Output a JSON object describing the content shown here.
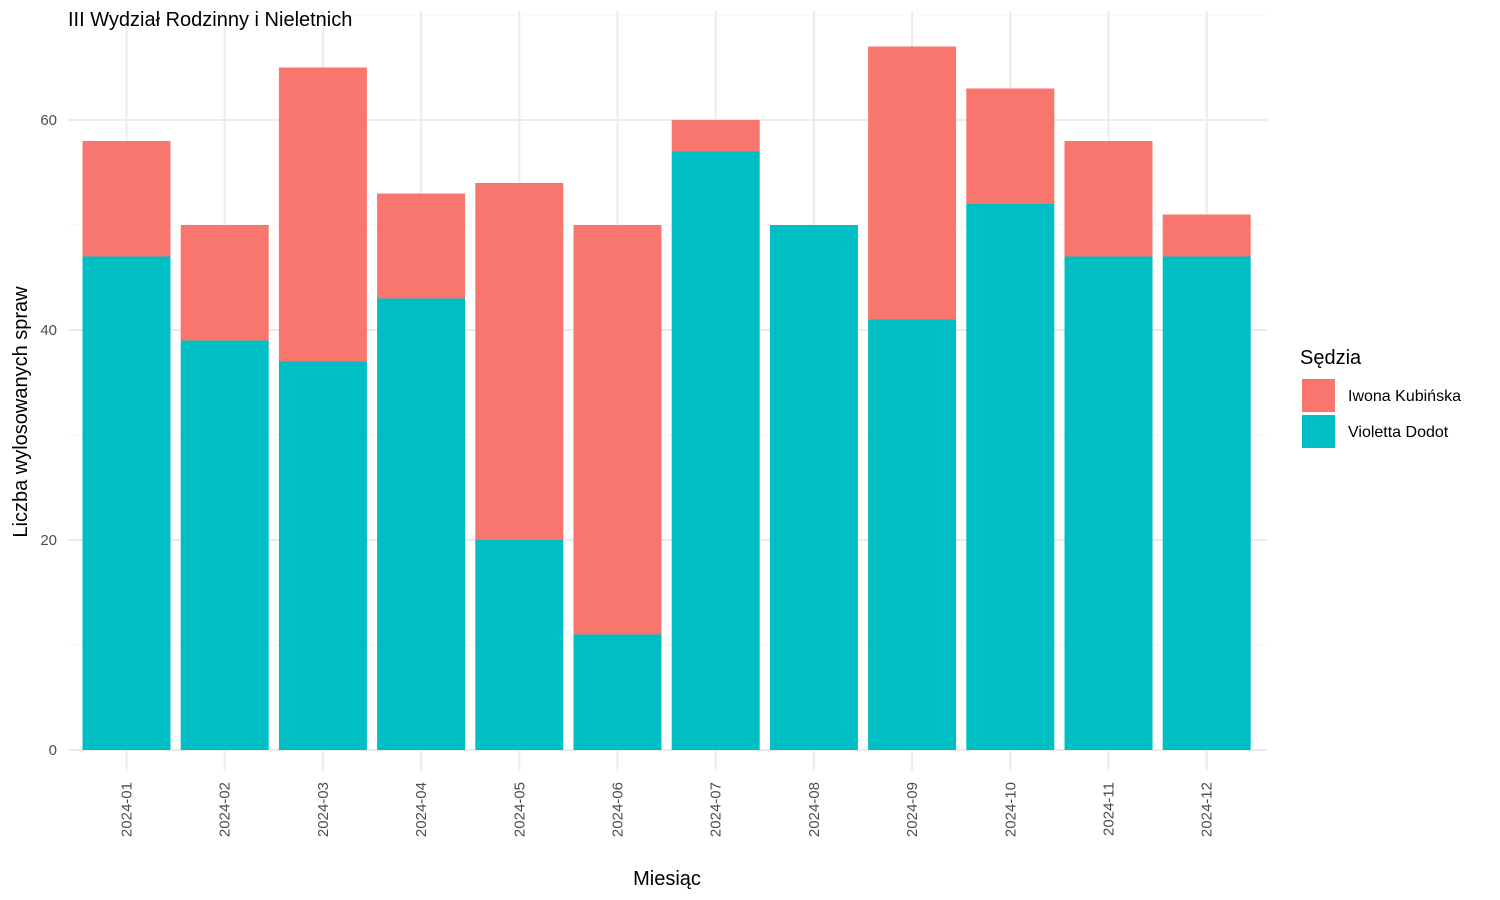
{
  "chart_data": {
    "type": "bar",
    "stacked": true,
    "title": "III Wydział Rodzinny i Nieletnich",
    "xlabel": "Miesiąc",
    "ylabel": "Liczba wylosowanych spraw",
    "categories": [
      "2024-01",
      "2024-02",
      "2024-03",
      "2024-04",
      "2024-05",
      "2024-06",
      "2024-07",
      "2024-08",
      "2024-09",
      "2024-10",
      "2024-11",
      "2024-12"
    ],
    "series": [
      {
        "name": "Violetta Dodot",
        "color": "#00BFC4",
        "values": [
          47,
          39,
          37,
          43,
          20,
          11,
          57,
          50,
          41,
          52,
          47,
          47
        ]
      },
      {
        "name": "Iwona Kubińska",
        "color": "#F8766D",
        "values": [
          11,
          11,
          28,
          10,
          34,
          39,
          3,
          0,
          26,
          11,
          11,
          4
        ]
      }
    ],
    "ylim": [
      0,
      70
    ],
    "yticks": [
      0,
      20,
      40,
      60
    ],
    "grid": true,
    "legend": {
      "title": "Sędzia",
      "placement": "right",
      "entries": [
        {
          "label": "Iwona Kubińska",
          "color": "#F8766D"
        },
        {
          "label": "Violetta Dodot",
          "color": "#00BFC4"
        }
      ]
    }
  }
}
